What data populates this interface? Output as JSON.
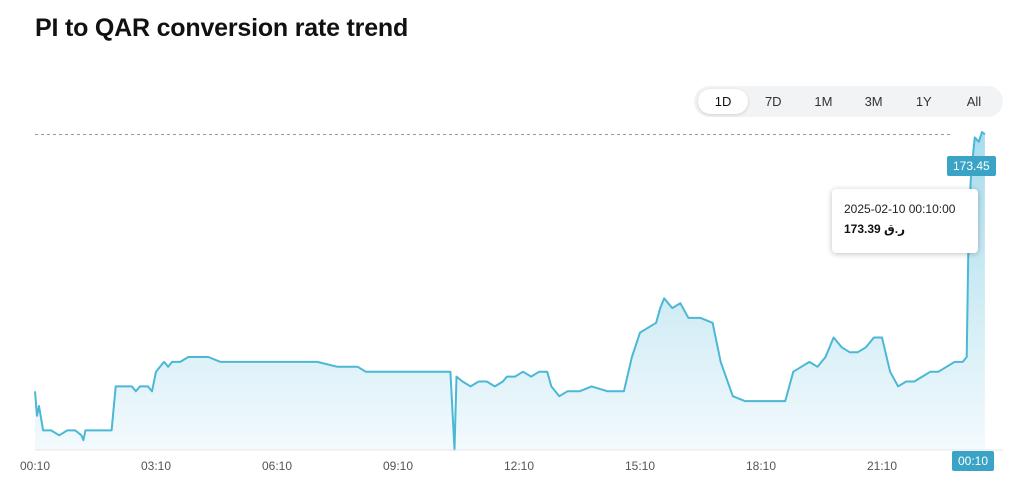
{
  "title": "PI to QAR conversion rate trend",
  "range_tabs": [
    "1D",
    "7D",
    "1M",
    "3M",
    "1Y",
    "All"
  ],
  "active_range": "1D",
  "tooltip": {
    "date": "2025-02-10 00:10:00",
    "value": "173.39",
    "currency": "ر.ق"
  },
  "current_price_label": "173.45",
  "current_time_label": "00:10",
  "colors": {
    "line": "#4bb8d4",
    "fill_top": "#a8dcec",
    "fill_bottom": "#f3fafd",
    "badge": "#3aa3c6"
  },
  "chart_data": {
    "type": "area",
    "x_tick_labels": [
      "00:10",
      "03:10",
      "06:10",
      "09:10",
      "12:10",
      "15:10",
      "18:10",
      "21:10"
    ],
    "y_reference_line": 173.45,
    "grid": false,
    "y_axis_visible": false,
    "ylim": [
      167.0,
      173.5
    ],
    "series": [
      {
        "values": [
          [
            0.0,
            168.2
          ],
          [
            0.05,
            167.7
          ],
          [
            0.1,
            167.9
          ],
          [
            0.2,
            167.4
          ],
          [
            0.4,
            167.4
          ],
          [
            0.6,
            167.3
          ],
          [
            0.8,
            167.4
          ],
          [
            1.0,
            167.4
          ],
          [
            1.15,
            167.3
          ],
          [
            1.2,
            167.2
          ],
          [
            1.25,
            167.4
          ],
          [
            1.4,
            167.4
          ],
          [
            1.6,
            167.4
          ],
          [
            1.9,
            167.4
          ],
          [
            2.0,
            168.3
          ],
          [
            2.2,
            168.3
          ],
          [
            2.4,
            168.3
          ],
          [
            2.5,
            168.2
          ],
          [
            2.6,
            168.3
          ],
          [
            2.8,
            168.3
          ],
          [
            2.9,
            168.2
          ],
          [
            3.0,
            168.6
          ],
          [
            3.1,
            168.7
          ],
          [
            3.2,
            168.8
          ],
          [
            3.3,
            168.7
          ],
          [
            3.4,
            168.8
          ],
          [
            3.6,
            168.8
          ],
          [
            3.8,
            168.9
          ],
          [
            4.0,
            168.9
          ],
          [
            4.3,
            168.9
          ],
          [
            4.6,
            168.8
          ],
          [
            4.8,
            168.8
          ],
          [
            5.0,
            168.8
          ],
          [
            5.5,
            168.8
          ],
          [
            6.0,
            168.8
          ],
          [
            6.5,
            168.8
          ],
          [
            7.0,
            168.8
          ],
          [
            7.5,
            168.7
          ],
          [
            8.0,
            168.7
          ],
          [
            8.2,
            168.6
          ],
          [
            8.4,
            168.6
          ],
          [
            8.6,
            168.6
          ],
          [
            8.8,
            168.6
          ],
          [
            9.0,
            168.6
          ],
          [
            9.2,
            168.6
          ],
          [
            9.5,
            168.6
          ],
          [
            10.0,
            168.6
          ],
          [
            10.3,
            168.6
          ],
          [
            10.4,
            167.0
          ],
          [
            10.45,
            168.5
          ],
          [
            10.6,
            168.4
          ],
          [
            10.8,
            168.3
          ],
          [
            11.0,
            168.4
          ],
          [
            11.2,
            168.4
          ],
          [
            11.4,
            168.3
          ],
          [
            11.6,
            168.4
          ],
          [
            11.7,
            168.5
          ],
          [
            11.9,
            168.5
          ],
          [
            12.1,
            168.6
          ],
          [
            12.3,
            168.5
          ],
          [
            12.5,
            168.6
          ],
          [
            12.7,
            168.6
          ],
          [
            12.8,
            168.3
          ],
          [
            13.0,
            168.1
          ],
          [
            13.2,
            168.2
          ],
          [
            13.5,
            168.2
          ],
          [
            13.8,
            168.3
          ],
          [
            14.2,
            168.2
          ],
          [
            14.6,
            168.2
          ],
          [
            14.8,
            168.9
          ],
          [
            15.0,
            169.4
          ],
          [
            15.2,
            169.5
          ],
          [
            15.4,
            169.6
          ],
          [
            15.5,
            169.9
          ],
          [
            15.6,
            170.1
          ],
          [
            15.7,
            170.0
          ],
          [
            15.8,
            169.9
          ],
          [
            16.0,
            170.0
          ],
          [
            16.2,
            169.7
          ],
          [
            16.5,
            169.7
          ],
          [
            16.8,
            169.6
          ],
          [
            17.0,
            168.8
          ],
          [
            17.3,
            168.1
          ],
          [
            17.6,
            168.0
          ],
          [
            18.0,
            168.0
          ],
          [
            18.4,
            168.0
          ],
          [
            18.6,
            168.0
          ],
          [
            18.8,
            168.6
          ],
          [
            19.0,
            168.7
          ],
          [
            19.2,
            168.8
          ],
          [
            19.4,
            168.7
          ],
          [
            19.6,
            168.9
          ],
          [
            19.8,
            169.3
          ],
          [
            20.0,
            169.1
          ],
          [
            20.2,
            169.0
          ],
          [
            20.4,
            169.0
          ],
          [
            20.6,
            169.1
          ],
          [
            20.8,
            169.3
          ],
          [
            21.0,
            169.3
          ],
          [
            21.2,
            168.6
          ],
          [
            21.4,
            168.3
          ],
          [
            21.6,
            168.4
          ],
          [
            21.8,
            168.4
          ],
          [
            22.0,
            168.5
          ],
          [
            22.2,
            168.6
          ],
          [
            22.4,
            168.6
          ],
          [
            22.6,
            168.7
          ],
          [
            22.8,
            168.8
          ],
          [
            23.0,
            168.8
          ],
          [
            23.1,
            168.9
          ],
          [
            23.15,
            171.6
          ],
          [
            23.2,
            172.5
          ],
          [
            23.25,
            173.0
          ],
          [
            23.3,
            173.39
          ],
          [
            23.4,
            173.3
          ],
          [
            23.48,
            173.5
          ],
          [
            23.55,
            173.45
          ]
        ]
      }
    ]
  }
}
